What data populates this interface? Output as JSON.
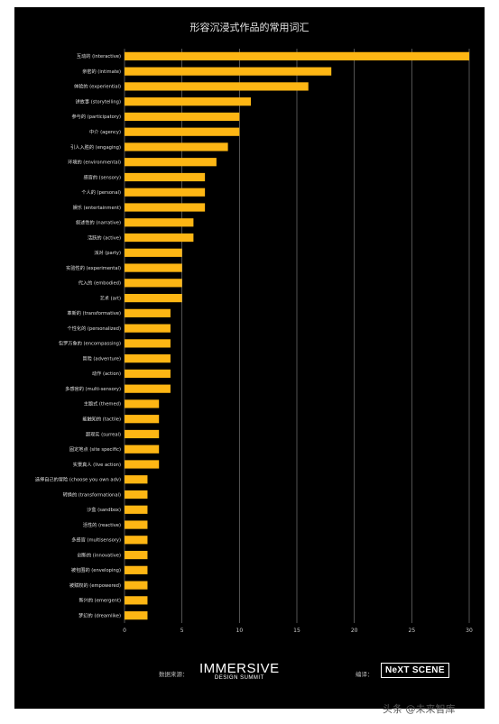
{
  "colors": {
    "bar": "#FDB614",
    "background": "#000000",
    "grid": "#8a8a8a"
  },
  "chart_data": {
    "type": "bar",
    "orientation": "horizontal",
    "title": "形容沉浸式作品的常用词汇",
    "xlim": [
      0,
      30
    ],
    "x_ticks": [
      0,
      5,
      10,
      15,
      20,
      25,
      30
    ],
    "grid": "vertical",
    "categories": [
      "互动的 (interactive)",
      "亲密的 (intimate)",
      "体验的 (experiential)",
      "讲故事 (storytelling)",
      "参与的 (participatory)",
      "中介 (agency)",
      "引人入胜的 (engaging)",
      "环境的 (environmental)",
      "感官的 (sensory)",
      "个人的 (personal)",
      "娱乐 (entertainment)",
      "叙述性的 (narrative)",
      "活跃的 (active)",
      "派对 (party)",
      "实验性的 (experimental)",
      "代入的 (embodied)",
      "艺术 (art)",
      "革新的 (transformative)",
      "个性化的 (personalized)",
      "包罗万象的 (encompassing)",
      "冒险 (adventure)",
      "动作 (action)",
      "多感官的 (multi-sensory)",
      "主题式 (themed)",
      "能触知的 (tactile)",
      "超现实 (surreal)",
      "固定地点 (site specific)",
      "实景真人 (live action)",
      "选择自己的冒险 (choose you own adv)",
      "转换的 (transformational)",
      "沙盒 (sandbox)",
      "活性的 (reactive)",
      "多感官 (multisensory)",
      "创新的 (innovative)",
      "被包围的 (enveloping)",
      "被赋权的 (empowered)",
      "新兴的 (emergent)",
      "梦幻的 (dreamlike)"
    ],
    "values": [
      30,
      18,
      16,
      11,
      10,
      10,
      9,
      8,
      7,
      7,
      7,
      6,
      6,
      5,
      5,
      5,
      5,
      4,
      4,
      4,
      4,
      4,
      4,
      3,
      3,
      3,
      3,
      3,
      2,
      2,
      2,
      2,
      2,
      2,
      2,
      2,
      2,
      2
    ]
  },
  "footer": {
    "source_label": "数据来源：",
    "source_logo_main": "IMMERSIVE",
    "source_logo_sub": "DESIGN SUMMIT",
    "translate_label": "编译：",
    "translate_logo": "NeXT SCENE"
  },
  "watermark": "头条 @未来智库"
}
